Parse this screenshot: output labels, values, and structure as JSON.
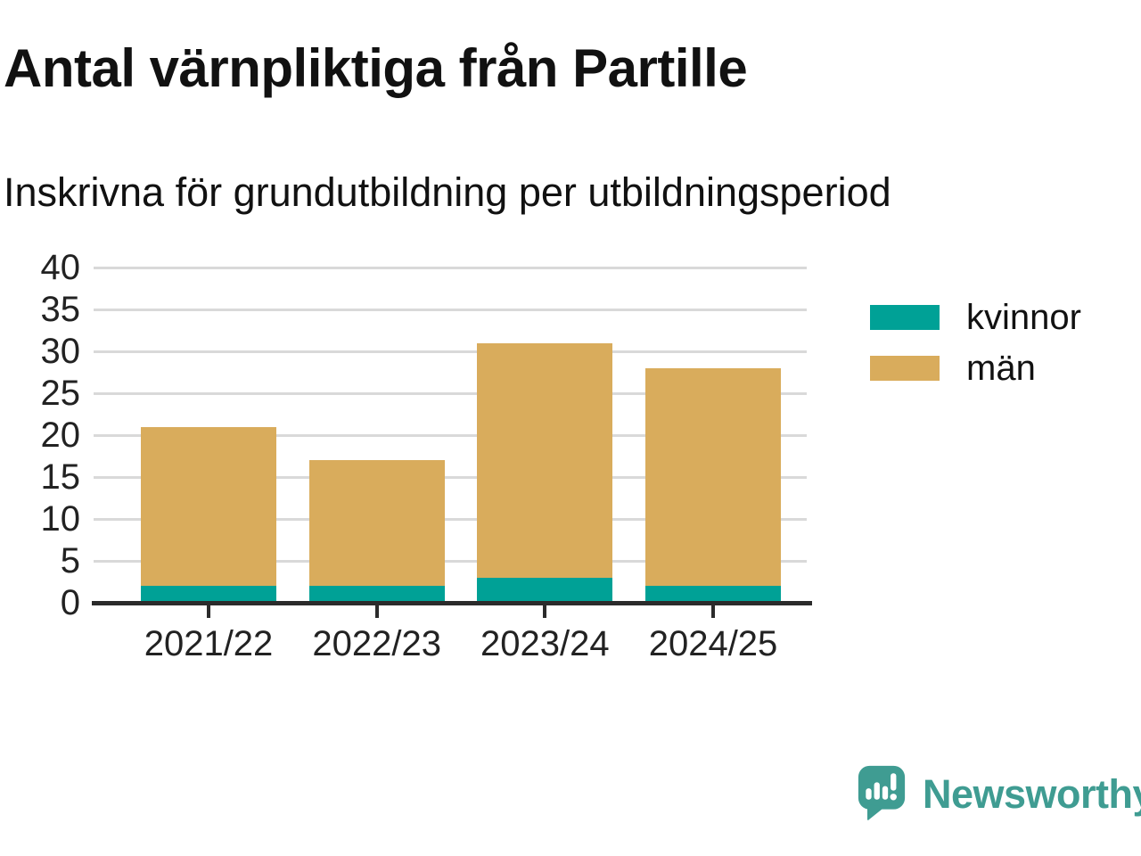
{
  "header": {
    "title": "Antal värnpliktiga från Partille",
    "subtitle": "Inskrivna för grundutbildning per utbildningsperiod"
  },
  "chart_data": {
    "type": "bar",
    "stacked": true,
    "title": "Antal värnpliktiga från Partille",
    "subtitle": "Inskrivna för grundutbildning per utbildningsperiod",
    "categories": [
      "2021/22",
      "2022/23",
      "2023/24",
      "2024/25"
    ],
    "series": [
      {
        "name": "kvinnor",
        "color": "#00a196",
        "values": [
          2,
          2,
          3,
          2
        ]
      },
      {
        "name": "män",
        "color": "#d9ac5c",
        "values": [
          19,
          15,
          28,
          26
        ]
      }
    ],
    "totals": [
      21,
      17,
      31,
      28
    ],
    "ylim": [
      0,
      40
    ],
    "yticks": [
      0,
      5,
      10,
      15,
      20,
      25,
      30,
      35,
      40
    ],
    "xlabel": "",
    "ylabel": "",
    "grid": "horizontal",
    "legend_position": "right"
  },
  "footer": {
    "brand": "Newsworthy"
  },
  "colors": {
    "axis": "#2b2b2b",
    "grid": "#d9d9d9",
    "text": "#111111",
    "brand": "#3f9c92"
  }
}
